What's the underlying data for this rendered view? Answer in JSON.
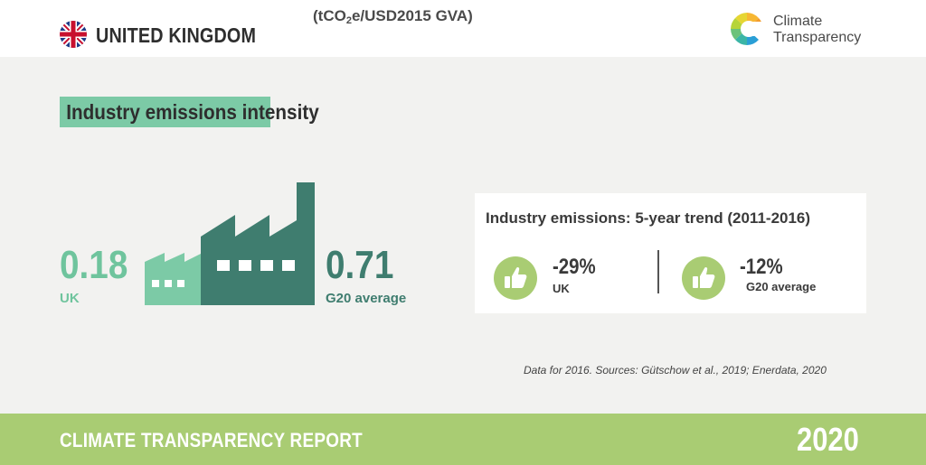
{
  "header": {
    "country": "UNITED KINGDOM",
    "logo_line1": "Climate",
    "logo_line2": "Transparency"
  },
  "title": {
    "main": "Industry emissions intensity",
    "unit_prefix": "(tCO",
    "unit_sub": "2",
    "unit_suffix": "e/USD2015 GVA)"
  },
  "intensity": {
    "uk_value": "0.18",
    "uk_label": "UK",
    "g20_value": "0.71",
    "g20_label": "G20 average"
  },
  "trend": {
    "title": "Industry emissions: 5-year trend (2011-2016)",
    "uk_change": "-29%",
    "uk_label": "UK",
    "g20_change": "-12%",
    "g20_label": "G20 average"
  },
  "source": "Data for 2016. Sources: Gütschow et al., 2019; Enerdata, 2020",
  "footer": {
    "report": "CLIMATE TRANSPARENCY REPORT",
    "year": "2020"
  },
  "colors": {
    "light_green": "#7ccaa6",
    "dark_green": "#3f7d6f",
    "lime": "#a9cc73",
    "background": "#f2f2f0"
  },
  "icons": [
    "uk-flag-icon",
    "climate-transparency-logo",
    "factory-icon",
    "thumbs-up-icon"
  ]
}
